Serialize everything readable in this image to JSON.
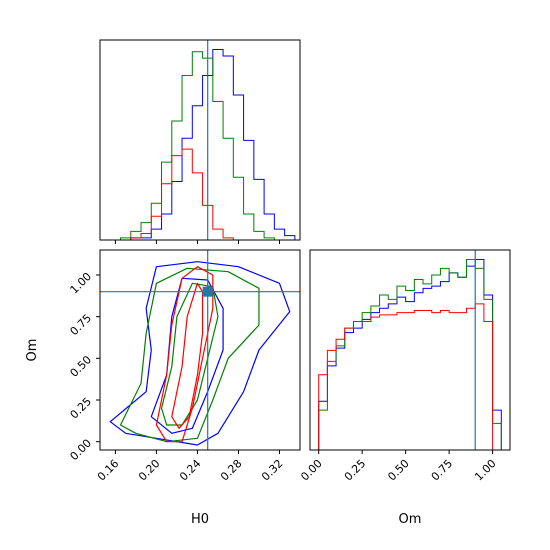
{
  "chart_data": {
    "type": "corner",
    "parameters": [
      "H0",
      "Om"
    ],
    "truths": {
      "H0": 0.25,
      "Om": 0.9
    },
    "truth_color": "#1f77b4",
    "series_colors": [
      "#0000ff",
      "#008000",
      "#ff0000"
    ],
    "panels": {
      "h0_hist": {
        "type": "histogram-step",
        "xlim": [
          0.145,
          0.34
        ],
        "x_ticks": [
          0.16,
          0.2,
          0.24,
          0.28,
          0.32
        ],
        "bin_edges": [
          0.155,
          0.165,
          0.175,
          0.185,
          0.195,
          0.205,
          0.215,
          0.225,
          0.235,
          0.245,
          0.255,
          0.265,
          0.275,
          0.285,
          0.295,
          0.305,
          0.315,
          0.325,
          0.335
        ],
        "series": [
          {
            "color": "#0000ff",
            "counts": [
              0,
              0,
              0.01,
              0.01,
              0.05,
              0.12,
              0.27,
              0.47,
              0.62,
              0.76,
              0.88,
              0.85,
              0.67,
              0.46,
              0.28,
              0.12,
              0.05,
              0.02
            ]
          },
          {
            "color": "#008000",
            "counts": [
              0,
              0.01,
              0.04,
              0.08,
              0.17,
              0.36,
              0.55,
              0.76,
              0.87,
              0.84,
              0.64,
              0.47,
              0.29,
              0.12,
              0.04,
              0.01,
              0,
              0
            ]
          },
          {
            "color": "#ff0000",
            "counts": [
              0,
              0,
              0.01,
              0.03,
              0.11,
              0.26,
              0.39,
              0.42,
              0.31,
              0.16,
              0.05,
              0.01,
              0,
              0,
              0,
              0,
              0,
              0
            ]
          }
        ]
      },
      "om_hist": {
        "type": "histogram-step",
        "xlim": [
          -0.05,
          1.1
        ],
        "x_ticks": [
          0.0,
          0.25,
          0.5,
          0.75,
          1.0
        ],
        "x_tick_labels": [
          "0.00",
          "0.25",
          "0.50",
          "0.75",
          "1.00"
        ],
        "bin_edges": [
          0.0,
          0.05,
          0.1,
          0.15,
          0.2,
          0.25,
          0.3,
          0.35,
          0.4,
          0.45,
          0.5,
          0.55,
          0.6,
          0.65,
          0.7,
          0.75,
          0.8,
          0.85,
          0.9,
          0.95,
          1.0,
          1.05
        ],
        "series": [
          {
            "color": "#0000ff",
            "counts": [
              0.22,
              0.38,
              0.46,
              0.53,
              0.55,
              0.59,
              0.62,
              0.64,
              0.66,
              0.69,
              0.67,
              0.71,
              0.73,
              0.74,
              0.76,
              0.8,
              0.78,
              0.83,
              0.86,
              0.7,
              0.18
            ]
          },
          {
            "color": "#008000",
            "counts": [
              0.18,
              0.4,
              0.47,
              0.55,
              0.58,
              0.62,
              0.65,
              0.7,
              0.68,
              0.74,
              0.72,
              0.77,
              0.75,
              0.79,
              0.82,
              0.8,
              0.78,
              0.86,
              0.82,
              0.68,
              0.12
            ]
          },
          {
            "color": "#ff0000",
            "counts": [
              0.34,
              0.45,
              0.5,
              0.55,
              0.58,
              0.58,
              0.6,
              0.61,
              0.61,
              0.62,
              0.62,
              0.63,
              0.63,
              0.62,
              0.63,
              0.62,
              0.62,
              0.64,
              0.66,
              0.58,
              0.0
            ]
          }
        ]
      },
      "joint": {
        "type": "contour",
        "xlim": [
          0.145,
          0.34
        ],
        "ylim": [
          -0.05,
          1.15
        ],
        "x_ticks": [
          0.16,
          0.2,
          0.24,
          0.28,
          0.32
        ],
        "x_tick_labels": [
          "0.16",
          "0.20",
          "0.24",
          "0.28",
          "0.32"
        ],
        "y_ticks": [
          0.0,
          0.25,
          0.5,
          0.75,
          1.0
        ],
        "y_tick_labels": [
          "0.00",
          "0.25",
          "0.50",
          "0.75",
          "1.00"
        ],
        "xlabel": "H0",
        "ylabel": "Om",
        "contours": [
          {
            "color": "#0000ff",
            "points": [
              [
                0.155,
                0.12
              ],
              [
                0.19,
                0.3
              ],
              [
                0.195,
                0.55
              ],
              [
                0.19,
                0.8
              ],
              [
                0.2,
                1.05
              ],
              [
                0.24,
                1.08
              ],
              [
                0.28,
                1.05
              ],
              [
                0.32,
                0.95
              ],
              [
                0.33,
                0.78
              ],
              [
                0.3,
                0.55
              ],
              [
                0.285,
                0.3
              ],
              [
                0.26,
                0.05
              ],
              [
                0.24,
                -0.02
              ],
              [
                0.2,
                0.02
              ],
              [
                0.17,
                0.05
              ]
            ]
          },
          {
            "color": "#0000ff",
            "points": [
              [
                0.195,
                0.15
              ],
              [
                0.21,
                0.4
              ],
              [
                0.215,
                0.75
              ],
              [
                0.225,
                0.98
              ],
              [
                0.25,
                0.97
              ],
              [
                0.265,
                0.8
              ],
              [
                0.265,
                0.55
              ],
              [
                0.25,
                0.3
              ],
              [
                0.235,
                0.08
              ],
              [
                0.215,
                0.05
              ]
            ]
          },
          {
            "color": "#008000",
            "points": [
              [
                0.165,
                0.1
              ],
              [
                0.185,
                0.35
              ],
              [
                0.19,
                0.65
              ],
              [
                0.2,
                0.95
              ],
              [
                0.23,
                1.04
              ],
              [
                0.27,
                1.02
              ],
              [
                0.3,
                0.92
              ],
              [
                0.3,
                0.7
              ],
              [
                0.27,
                0.5
              ],
              [
                0.255,
                0.25
              ],
              [
                0.24,
                0.02
              ],
              [
                0.21,
                0.0
              ],
              [
                0.18,
                0.05
              ]
            ]
          },
          {
            "color": "#008000",
            "points": [
              [
                0.205,
                0.2
              ],
              [
                0.215,
                0.45
              ],
              [
                0.22,
                0.75
              ],
              [
                0.235,
                0.95
              ],
              [
                0.255,
                0.93
              ],
              [
                0.26,
                0.75
              ],
              [
                0.25,
                0.5
              ],
              [
                0.24,
                0.25
              ],
              [
                0.225,
                0.1
              ],
              [
                0.21,
                0.1
              ]
            ]
          },
          {
            "color": "#ff0000",
            "points": [
              [
                0.2,
                0.1
              ],
              [
                0.21,
                0.4
              ],
              [
                0.215,
                0.7
              ],
              [
                0.225,
                0.98
              ],
              [
                0.24,
                1.05
              ],
              [
                0.255,
                1.0
              ],
              [
                0.255,
                0.8
              ],
              [
                0.245,
                0.5
              ],
              [
                0.235,
                0.2
              ],
              [
                0.225,
                0.0
              ],
              [
                0.21,
                0.0
              ]
            ]
          },
          {
            "color": "#ff0000",
            "points": [
              [
                0.215,
                0.15
              ],
              [
                0.225,
                0.45
              ],
              [
                0.23,
                0.75
              ],
              [
                0.24,
                0.95
              ],
              [
                0.245,
                0.9
              ],
              [
                0.245,
                0.65
              ],
              [
                0.24,
                0.4
              ],
              [
                0.232,
                0.15
              ],
              [
                0.222,
                0.08
              ]
            ]
          }
        ]
      }
    }
  }
}
